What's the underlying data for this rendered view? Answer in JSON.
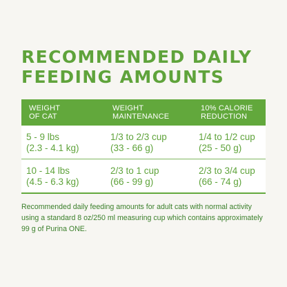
{
  "title": {
    "line1": "RECOMMENDED DAILY",
    "line2": "FEEDING AMOUNTS"
  },
  "table": {
    "headers": [
      {
        "line1": "WEIGHT",
        "line2": "OF CAT"
      },
      {
        "line1": "WEIGHT",
        "line2": "MAINTENANCE"
      },
      {
        "line1": "10% CALORIE",
        "line2": "REDUCTION"
      }
    ],
    "rows": [
      {
        "weight": {
          "line1": "5 - 9 lbs",
          "line2": "(2.3 - 4.1 kg)"
        },
        "maintenance": {
          "line1": "1/3 to 2/3 cup",
          "line2": "(33 - 66 g)"
        },
        "reduction": {
          "line1": "1/4 to 1/2 cup",
          "line2": "(25 - 50 g)"
        }
      },
      {
        "weight": {
          "line1": "10 - 14 lbs",
          "line2": "(4.5 - 6.3 kg)"
        },
        "maintenance": {
          "line1": "2/3 to 1 cup",
          "line2": "(66 - 99 g)"
        },
        "reduction": {
          "line1": "2/3 to 3/4 cup",
          "line2": "(66 - 74 g)"
        }
      }
    ]
  },
  "note": {
    "line1": "Recommended daily feeding amounts for adult cats with normal activity",
    "line2": "using a standard 8 oz/250 ml measuring cup which contains approximately",
    "line3": "99 g of Purina ONE."
  }
}
